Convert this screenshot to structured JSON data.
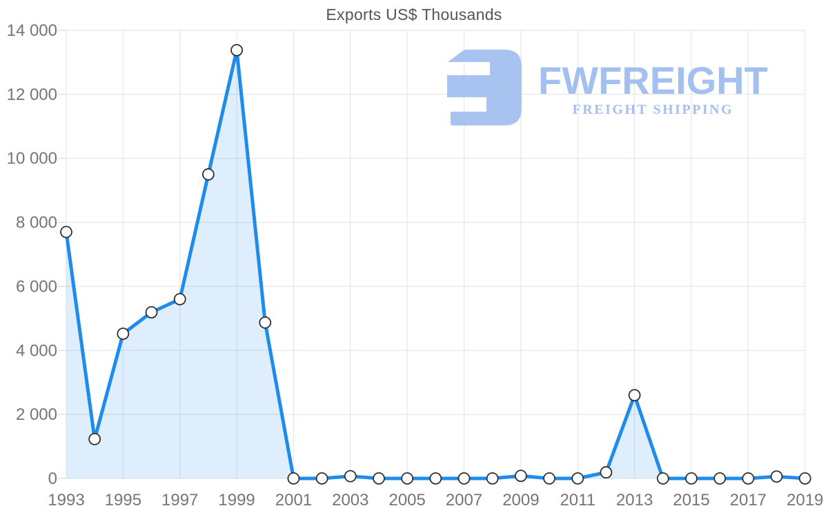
{
  "header": {
    "title": "Exports US$ Thousands"
  },
  "watermark": {
    "brand": "FWFREIGHT",
    "tagline": "FREIGHT SHIPPING",
    "mark_color": "#a8c3f0",
    "brand_color": "#a3c0ef",
    "tagline_color": "#a5c0ef"
  },
  "chart_data": {
    "type": "area",
    "title": "Exports US$ Thousands",
    "x": [
      1993,
      1994,
      1995,
      1996,
      1997,
      1998,
      1999,
      2000,
      2001,
      2002,
      2003,
      2004,
      2005,
      2006,
      2007,
      2008,
      2009,
      2010,
      2011,
      2012,
      2013,
      2014,
      2015,
      2016,
      2017,
      2018,
      2019
    ],
    "values": [
      7700,
      1230,
      4520,
      5190,
      5600,
      9500,
      13380,
      4870,
      0,
      0,
      70,
      0,
      0,
      0,
      0,
      0,
      80,
      0,
      0,
      190,
      2600,
      0,
      0,
      0,
      0,
      60,
      0
    ],
    "xlabel": "",
    "ylabel": "",
    "ylim": [
      0,
      14000
    ],
    "ytick_step": 2000,
    "xticks": [
      1993,
      1995,
      1997,
      1999,
      2001,
      2003,
      2005,
      2007,
      2009,
      2011,
      2013,
      2015,
      2017,
      2019
    ],
    "grid": true,
    "legend": "none",
    "number_format": "space-thousands",
    "colors": {
      "line": "#1f8ceb",
      "fill": "rgba(32,140,237,0.15)",
      "marker_fill": "#ffffff",
      "marker_stroke": "#2f2f2f",
      "grid": "#e2e2e2",
      "tick_dash": "#cfcfcf",
      "tick_text": "#757575"
    }
  }
}
